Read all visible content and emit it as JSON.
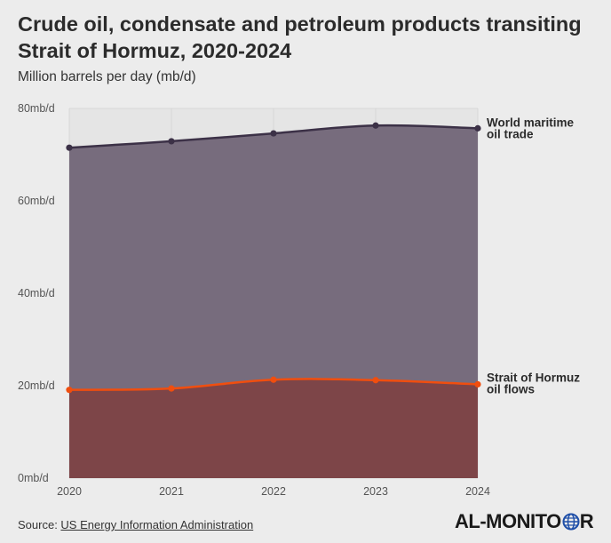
{
  "title": "Crude oil, condensate and petroleum products transiting Strait of Hormuz, 2020-2024",
  "subtitle": "Million barrels per day (mb/d)",
  "source": {
    "prefix": "Source: ",
    "link_text": "US Energy Information Administration"
  },
  "logo": {
    "left": "AL",
    "sep": "-",
    "right": "MONITO",
    "last": "R",
    "icon": "globe-icon"
  },
  "colors": {
    "background": "#ececec",
    "world_fill": "#776c7d",
    "world_line": "#3c3147",
    "hormuz_fill": "#7d4548",
    "hormuz_line": "#f04e0f",
    "grid": "#d7d7d7",
    "plot_bg": "#e5e5e5"
  },
  "chart_data": {
    "type": "area",
    "x": [
      2020,
      2021,
      2022,
      2023,
      2024
    ],
    "ylim": [
      0,
      80
    ],
    "yticks": [
      0,
      20,
      40,
      60,
      80
    ],
    "ytick_labels": [
      "0mb/d",
      "20mb/d",
      "40mb/d",
      "60mb/d",
      "80mb/d"
    ],
    "xtick_labels": [
      "2020",
      "2021",
      "2022",
      "2023",
      "2024"
    ],
    "grid": true,
    "series": [
      {
        "name": "World maritime oil trade",
        "label_lines": [
          "World maritime",
          "oil trade"
        ],
        "values": [
          71.5,
          72.9,
          74.6,
          76.3,
          75.7
        ]
      },
      {
        "name": "Strait of Hormuz oil flows",
        "label_lines": [
          "Strait of Hormuz",
          "oil flows"
        ],
        "values": [
          19.1,
          19.4,
          21.3,
          21.2,
          20.3
        ]
      }
    ]
  }
}
